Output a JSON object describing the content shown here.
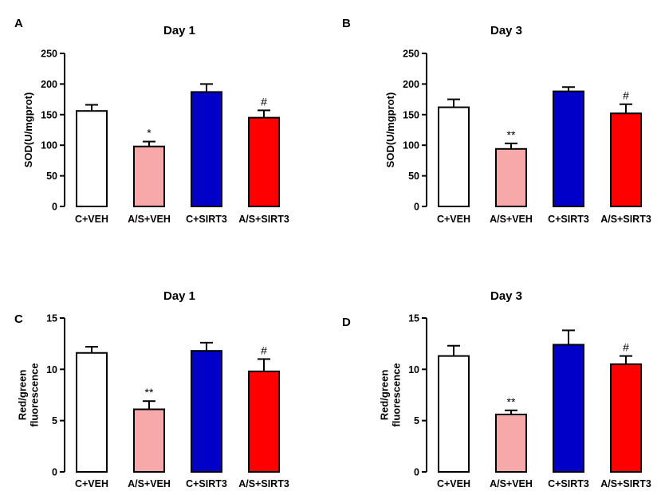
{
  "chart_data": [
    {
      "panel": "A",
      "type": "bar",
      "title": "Day 1",
      "ylabel_lines": [
        "SOD(U/mgprot)"
      ],
      "ylim": [
        0,
        250
      ],
      "yticks": [
        0,
        50,
        100,
        150,
        200,
        250
      ],
      "categories": [
        "C+VEH",
        "A/S+VEH",
        "C+SIRT3",
        "A/S+SIRT3"
      ],
      "values": [
        156,
        98,
        187,
        145
      ],
      "errors": [
        10,
        8,
        13,
        12
      ],
      "colors": [
        "#ffffff",
        "#f7a8a8",
        "#0000c8",
        "#ff0000"
      ],
      "annotations": [
        "",
        "*",
        "",
        "#"
      ]
    },
    {
      "panel": "B",
      "type": "bar",
      "title": "Day 3",
      "ylabel_lines": [
        "SOD(U/mgprot)"
      ],
      "ylim": [
        0,
        250
      ],
      "yticks": [
        0,
        50,
        100,
        150,
        200,
        250
      ],
      "categories": [
        "C+VEH",
        "A/S+VEH",
        "C+SIRT3",
        "A/S+SIRT3"
      ],
      "values": [
        162,
        94,
        188,
        152
      ],
      "errors": [
        13,
        9,
        7,
        15
      ],
      "colors": [
        "#ffffff",
        "#f7a8a8",
        "#0000c8",
        "#ff0000"
      ],
      "annotations": [
        "",
        "**",
        "",
        "#"
      ]
    },
    {
      "panel": "C",
      "type": "bar",
      "title": "Day 1",
      "ylabel_lines": [
        "Red/green",
        "fluorescence"
      ],
      "ylim": [
        0,
        15
      ],
      "yticks": [
        0,
        5,
        10,
        15
      ],
      "categories": [
        "C+VEH",
        "A/S+VEH",
        "C+SIRT3",
        "A/S+SIRT3"
      ],
      "values": [
        11.6,
        6.1,
        11.8,
        9.8
      ],
      "errors": [
        0.6,
        0.8,
        0.8,
        1.2
      ],
      "colors": [
        "#ffffff",
        "#f7a8a8",
        "#0000c8",
        "#ff0000"
      ],
      "annotations": [
        "",
        "**",
        "",
        "#"
      ]
    },
    {
      "panel": "D",
      "type": "bar",
      "title": "Day 3",
      "ylabel_lines": [
        "Red/green",
        "fluorescence"
      ],
      "ylim": [
        0,
        15
      ],
      "yticks": [
        0,
        5,
        10,
        15
      ],
      "categories": [
        "C+VEH",
        "A/S+VEH",
        "C+SIRT3",
        "A/S+SIRT3"
      ],
      "values": [
        11.3,
        5.6,
        12.4,
        10.5
      ],
      "errors": [
        1.0,
        0.4,
        1.4,
        0.8
      ],
      "colors": [
        "#ffffff",
        "#f7a8a8",
        "#0000c8",
        "#ff0000"
      ],
      "annotations": [
        "",
        "**",
        "",
        "#"
      ]
    }
  ]
}
